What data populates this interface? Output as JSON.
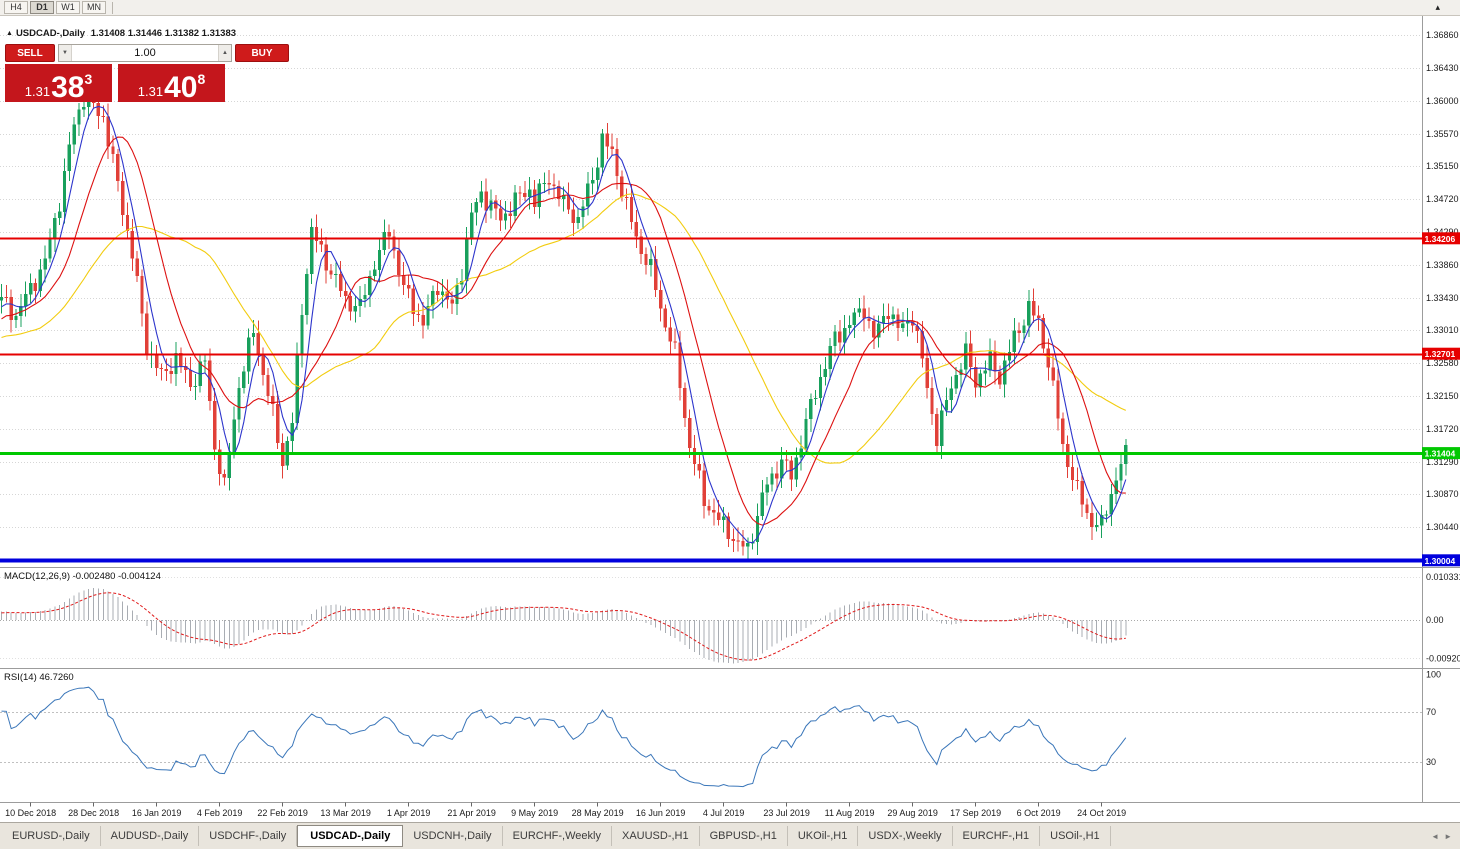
{
  "toolbar": {
    "timeframes": [
      {
        "label": "H4",
        "active": false
      },
      {
        "label": "D1",
        "active": true
      },
      {
        "label": "W1",
        "active": false
      },
      {
        "label": "MN",
        "active": false
      }
    ],
    "overflow_icon": "▴"
  },
  "symbol_header": {
    "collapse_icon": "▲",
    "symbol": "USDCAD-,Daily",
    "ohlc": "1.31408 1.31446 1.31382 1.31383"
  },
  "trade_panel": {
    "sell_label": "SELL",
    "buy_label": "BUY",
    "volume": "1.00",
    "volume_down_icon": "▼",
    "volume_up_icon": "▲",
    "sell_price": {
      "prefix": "1.31",
      "big": "38",
      "sup": "3"
    },
    "buy_price": {
      "prefix": "1.31",
      "big": "40",
      "sup": "8"
    }
  },
  "price_axis_labels": [
    "1.36860",
    "1.36430",
    "1.36000",
    "1.35570",
    "1.35150",
    "1.34720",
    "1.34290",
    "1.33860",
    "1.33430",
    "1.33010",
    "1.32580",
    "1.32150",
    "1.31720",
    "1.31290",
    "1.30870",
    "1.30440",
    "1.30010"
  ],
  "hlines": [
    {
      "price": 1.34206,
      "label": "1.34206",
      "color": "#e60000",
      "width": 2
    },
    {
      "price": 1.32701,
      "label": "1.32701",
      "color": "#e60000",
      "width": 2
    },
    {
      "price": 1.31404,
      "label": "1.31404",
      "color": "#00c800",
      "width": 3
    },
    {
      "price": 1.30004,
      "label": "1.30004",
      "color": "#0000dd",
      "width": 4
    }
  ],
  "chart_data": {
    "type": "candlestick",
    "symbol": "USDCAD",
    "timeframe": "Daily",
    "count": 233,
    "first_tick_index": 6,
    "tick_interval": 13,
    "up_color": "#18a05c",
    "down_color": "#e14038",
    "grid_color": "#d6d6d6",
    "close_path": [
      [
        0,
        1.334
      ],
      [
        3,
        1.332
      ],
      [
        6,
        1.3355
      ],
      [
        9,
        1.339
      ],
      [
        12,
        1.347
      ],
      [
        15,
        1.357
      ],
      [
        17,
        1.3605
      ],
      [
        19,
        1.359
      ],
      [
        21,
        1.358
      ],
      [
        24,
        1.349
      ],
      [
        27,
        1.34
      ],
      [
        30,
        1.328
      ],
      [
        33,
        1.324
      ],
      [
        36,
        1.3265
      ],
      [
        39,
        1.323
      ],
      [
        42,
        1.326
      ],
      [
        44,
        1.315
      ],
      [
        46,
        1.3095
      ],
      [
        49,
        1.323
      ],
      [
        52,
        1.33
      ],
      [
        54,
        1.3245
      ],
      [
        56,
        1.319
      ],
      [
        58,
        1.313
      ],
      [
        60,
        1.318
      ],
      [
        62,
        1.333
      ],
      [
        64,
        1.343
      ],
      [
        67,
        1.339
      ],
      [
        71,
        1.334
      ],
      [
        74,
        1.333
      ],
      [
        77,
        1.339
      ],
      [
        80,
        1.343
      ],
      [
        83,
        1.3355
      ],
      [
        87,
        1.331
      ],
      [
        90,
        1.336
      ],
      [
        93,
        1.333
      ],
      [
        95,
        1.338
      ],
      [
        97,
        1.345
      ],
      [
        99,
        1.348
      ],
      [
        103,
        1.3445
      ],
      [
        106,
        1.347
      ],
      [
        109,
        1.3485
      ],
      [
        110,
        1.347
      ],
      [
        113,
        1.35
      ],
      [
        116,
        1.3465
      ],
      [
        119,
        1.3445
      ],
      [
        122,
        1.35
      ],
      [
        124,
        1.355
      ],
      [
        126,
        1.353
      ],
      [
        128,
        1.3485
      ],
      [
        131,
        1.342
      ],
      [
        134,
        1.338
      ],
      [
        136,
        1.333
      ],
      [
        139,
        1.327
      ],
      [
        142,
        1.315
      ],
      [
        145,
        1.308
      ],
      [
        148,
        1.3052
      ],
      [
        150,
        1.304
      ],
      [
        152,
        1.302
      ],
      [
        154,
        1.3015
      ],
      [
        156,
        1.306
      ],
      [
        158,
        1.31
      ],
      [
        161,
        1.313
      ],
      [
        163,
        1.311
      ],
      [
        166,
        1.318
      ],
      [
        169,
        1.324
      ],
      [
        172,
        1.329
      ],
      [
        175,
        1.331
      ],
      [
        178,
        1.333
      ],
      [
        180,
        1.329
      ],
      [
        183,
        1.333
      ],
      [
        185,
        1.33
      ],
      [
        188,
        1.332
      ],
      [
        190,
        1.326
      ],
      [
        193,
        1.316
      ],
      [
        196,
        1.323
      ],
      [
        199,
        1.327
      ],
      [
        201,
        1.3235
      ],
      [
        204,
        1.326
      ],
      [
        206,
        1.324
      ],
      [
        209,
        1.329
      ],
      [
        212,
        1.333
      ],
      [
        214,
        1.331
      ],
      [
        216,
        1.326
      ],
      [
        219,
        1.315
      ],
      [
        222,
        1.309
      ],
      [
        225,
        1.305
      ],
      [
        227,
        1.3045
      ],
      [
        229,
        1.309
      ],
      [
        231,
        1.3125
      ],
      [
        232,
        1.3138
      ]
    ],
    "moving_averages": [
      {
        "period": 34,
        "color": "#f2cc0f",
        "name": "ma-slow-yellow"
      },
      {
        "period": 13,
        "color": "#dd1111",
        "name": "ma-medium-red"
      },
      {
        "period": 5,
        "color": "#2d35cc",
        "name": "ma-fast-blue"
      }
    ]
  },
  "macd_panel": {
    "label": "MACD(12,26,9) -0.002480 -0.004124",
    "fast": 12,
    "slow": 26,
    "signal": 9,
    "axis_labels": [
      "0.0103311",
      "0.00",
      "-0.0092031"
    ],
    "histogram_color": "#a9adb3",
    "signal_color": "#e01b1b"
  },
  "rsi_panel": {
    "label": "RSI(14) 46.7260",
    "period": 14,
    "axis_labels": [
      "100",
      "70",
      "30"
    ],
    "levels": [
      70,
      30
    ],
    "line_color": "#3a76b9"
  },
  "date_axis": [
    "10 Dec 2018",
    "28 Dec 2018",
    "16 Jan 2019",
    "4 Feb 2019",
    "22 Feb 2019",
    "13 Mar 2019",
    "1 Apr 2019",
    "21 Apr 2019",
    "9 May 2019",
    "28 May 2019",
    "16 Jun 2019",
    "4 Jul 2019",
    "23 Jul 2019",
    "11 Aug 2019",
    "29 Aug 2019",
    "17 Sep 2019",
    "6 Oct 2019",
    "24 Oct 2019"
  ],
  "tabs": [
    {
      "label": "EURUSD-,Daily",
      "active": false
    },
    {
      "label": "AUDUSD-,Daily",
      "active": false
    },
    {
      "label": "USDCHF-,Daily",
      "active": false
    },
    {
      "label": "USDCAD-,Daily",
      "active": true
    },
    {
      "label": "USDCNH-,Daily",
      "active": false
    },
    {
      "label": "EURCHF-,Weekly",
      "active": false
    },
    {
      "label": "XAUUSD-,H1",
      "active": false
    },
    {
      "label": "GBPUSD-,H1",
      "active": false
    },
    {
      "label": "UKOil-,H1",
      "active": false
    },
    {
      "label": "USDX-,Weekly",
      "active": false
    },
    {
      "label": "EURCHF-,H1",
      "active": false
    },
    {
      "label": "USOil-,H1",
      "active": false
    }
  ],
  "tab_scroll": {
    "left_icon": "◄",
    "right_icon": "►"
  }
}
